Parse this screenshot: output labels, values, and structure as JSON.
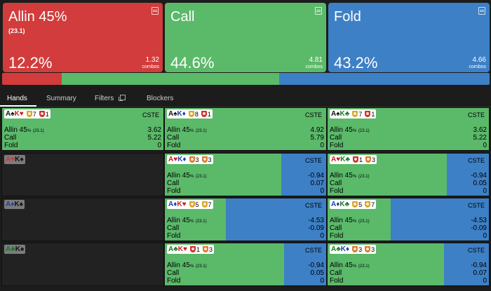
{
  "actions": [
    {
      "name": "Allin 45%",
      "sub": "(23.1)",
      "pct": "12.2%",
      "combos": "1.32",
      "combos_label": "combos",
      "color": "#d23c3c"
    },
    {
      "name": "Call",
      "sub": "",
      "pct": "44.6%",
      "combos": "4.81",
      "combos_label": "combos",
      "color": "#5bb96a"
    },
    {
      "name": "Fold",
      "sub": "",
      "pct": "43.2%",
      "combos": "4.66",
      "combos_label": "combos",
      "color": "#3d80c5"
    }
  ],
  "distribution": [
    {
      "fraction": 0.122,
      "color": "#d23c3c"
    },
    {
      "fraction": 0.446,
      "color": "#5bb96a"
    },
    {
      "fraction": 0.432,
      "color": "#3d80c5"
    }
  ],
  "tabs": [
    "Hands",
    "Summary",
    "Filters",
    "Blockers"
  ],
  "active_tab": "Hands",
  "hands": [
    [
      {
        "r1": "A",
        "s1": "♠",
        "c1": "black",
        "r2": "K",
        "s2": "♥",
        "c2": "red",
        "p1": "7",
        "p1c": "gold",
        "p2": "1",
        "p2c": "red",
        "dim": false,
        "empty": false,
        "call_frac": 1,
        "label": "CSTE",
        "allin_label": "Allin 45",
        "allin_pct": "%",
        "allin_sub": "(23.1)",
        "allin": "3.62",
        "call": "5.22",
        "fold_label": "Fold",
        "fold": "0",
        "call_label": "Call"
      },
      {
        "r1": "A",
        "s1": "♠",
        "c1": "black",
        "r2": "K",
        "s2": "♦",
        "c2": "blue",
        "p1": "8",
        "p1c": "gold",
        "p2": "1",
        "p2c": "red",
        "dim": false,
        "empty": false,
        "call_frac": 1,
        "label": "CSTE",
        "allin_label": "Allin 45",
        "allin_pct": "%",
        "allin_sub": "(23.1)",
        "allin": "4.92",
        "call": "5.79",
        "fold_label": "Fold",
        "fold": "0",
        "call_label": "Call"
      },
      {
        "r1": "A",
        "s1": "♠",
        "c1": "black",
        "r2": "K",
        "s2": "♣",
        "c2": "green",
        "p1": "7",
        "p1c": "gold",
        "p2": "1",
        "p2c": "red",
        "dim": false,
        "empty": false,
        "call_frac": 1,
        "label": "CSTE",
        "allin_label": "Allin 45",
        "allin_pct": "%",
        "allin_sub": "(23.1)",
        "allin": "3.62",
        "call": "5.22",
        "fold_label": "Fold",
        "fold": "0",
        "call_label": "Call"
      }
    ],
    [
      {
        "r1": "A",
        "s1": "♥",
        "c1": "red",
        "r2": "K",
        "s2": "♠",
        "c2": "black",
        "dim": true,
        "empty": true
      },
      {
        "r1": "A",
        "s1": "♥",
        "c1": "red",
        "r2": "K",
        "s2": "♦",
        "c2": "blue",
        "p1": "3",
        "p1c": "orange",
        "p2": "3",
        "p2c": "orange",
        "dim": false,
        "empty": false,
        "call_frac": 0.72,
        "label": "CSTE",
        "allin_label": "Allin 45",
        "allin_pct": "%",
        "allin_sub": "(23.1)",
        "allin": "-0.94",
        "call": "0.07",
        "fold_label": "Fold",
        "fold": "0",
        "call_label": "Call"
      },
      {
        "r1": "A",
        "s1": "♥",
        "c1": "red",
        "r2": "K",
        "s2": "♣",
        "c2": "green",
        "p1": "1",
        "p1c": "red",
        "p2": "3",
        "p2c": "orange",
        "dim": false,
        "empty": false,
        "call_frac": 0.74,
        "label": "CSTE",
        "allin_label": "Allin 45",
        "allin_pct": "%",
        "allin_sub": "(23.1)",
        "allin": "-0.94",
        "call": "0.05",
        "fold_label": "Fold",
        "fold": "0",
        "call_label": "Call"
      }
    ],
    [
      {
        "r1": "A",
        "s1": "♦",
        "c1": "blue",
        "r2": "K",
        "s2": "♠",
        "c2": "black",
        "dim": true,
        "empty": true
      },
      {
        "r1": "A",
        "s1": "♦",
        "c1": "blue",
        "r2": "K",
        "s2": "♥",
        "c2": "red",
        "p1": "5",
        "p1c": "gold",
        "p2": "7",
        "p2c": "gold",
        "dim": false,
        "empty": false,
        "call_frac": 0.38,
        "label": "CSTE",
        "allin_label": "Allin 45",
        "allin_pct": "%",
        "allin_sub": "(23.1)",
        "allin": "-4.53",
        "call": "-0.09",
        "fold_label": "Fold",
        "fold": "0",
        "call_label": "Call"
      },
      {
        "r1": "A",
        "s1": "♦",
        "c1": "blue",
        "r2": "K",
        "s2": "♣",
        "c2": "green",
        "p1": "5",
        "p1c": "gold",
        "p2": "7",
        "p2c": "gold",
        "dim": false,
        "empty": false,
        "call_frac": 0.39,
        "label": "CSTE",
        "allin_label": "Allin 45",
        "allin_pct": "%",
        "allin_sub": "(23.1)",
        "allin": "-4.53",
        "call": "-0.09",
        "fold_label": "Fold",
        "fold": "0",
        "call_label": "Call"
      }
    ],
    [
      {
        "r1": "A",
        "s1": "♣",
        "c1": "green",
        "r2": "K",
        "s2": "♠",
        "c2": "black",
        "dim": true,
        "empty": true
      },
      {
        "r1": "A",
        "s1": "♣",
        "c1": "green",
        "r2": "K",
        "s2": "♥",
        "c2": "red",
        "p1": "1",
        "p1c": "red",
        "p2": "3",
        "p2c": "orange",
        "dim": false,
        "empty": false,
        "call_frac": 0.74,
        "label": "CSTE",
        "allin_label": "Allin 45",
        "allin_pct": "%",
        "allin_sub": "(23.1)",
        "allin": "-0.94",
        "call": "0.05",
        "fold_label": "Fold",
        "fold": "0",
        "call_label": "Call"
      },
      {
        "r1": "A",
        "s1": "♣",
        "c1": "green",
        "r2": "K",
        "s2": "♦",
        "c2": "blue",
        "p1": "3",
        "p1c": "orange",
        "p2": "3",
        "p2c": "orange",
        "dim": false,
        "empty": false,
        "call_frac": 0.72,
        "label": "CSTE",
        "allin_label": "Allin 45",
        "allin_pct": "%",
        "allin_sub": "(23.1)",
        "allin": "-0.94",
        "call": "0.07",
        "fold_label": "Fold",
        "fold": "0",
        "call_label": "Call"
      }
    ]
  ],
  "colors": {
    "call": "#5bb96a",
    "fold": "#3d80c5",
    "empty": "#222222"
  }
}
